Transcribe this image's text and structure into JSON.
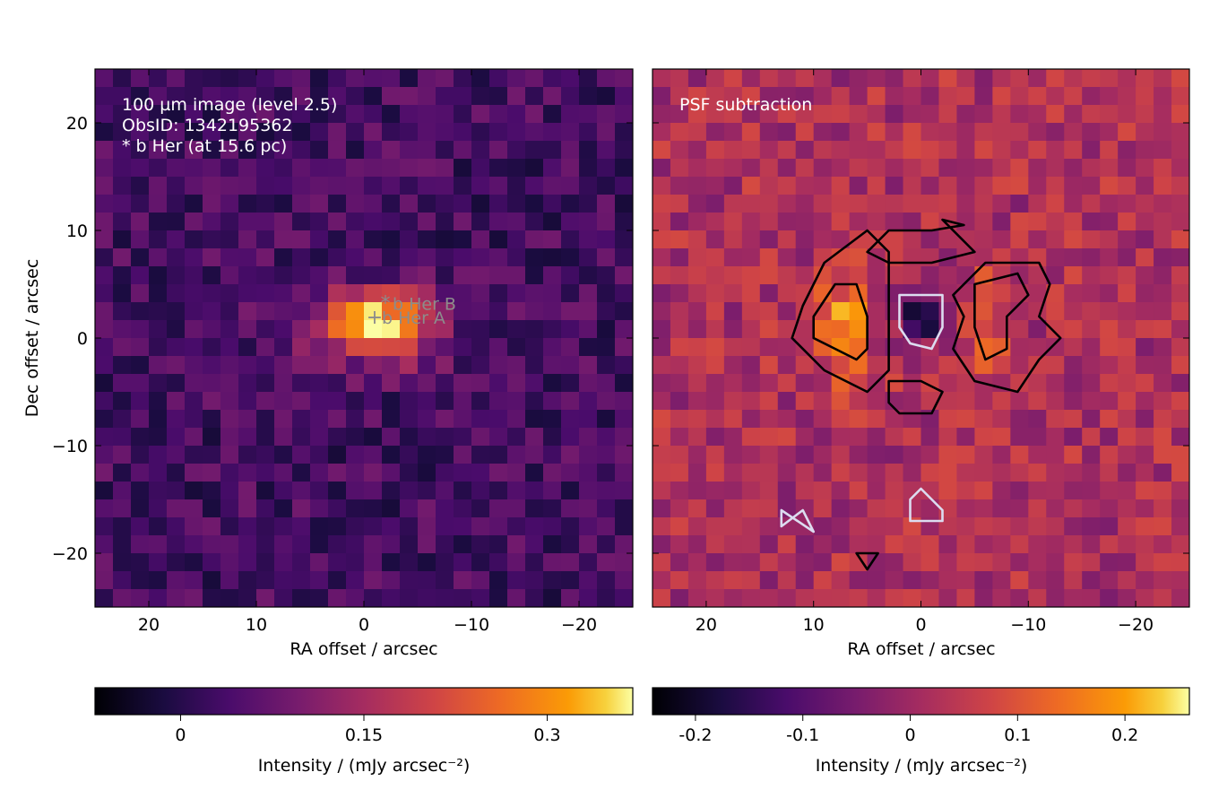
{
  "chart_data": [
    {
      "type": "heatmap",
      "panel": "left",
      "annotation_lines": [
        "100 µm image (level 2.5)",
        "ObsID: 1342195362",
        "* b Her (at 15.6 pc)"
      ],
      "xlabel": "RA offset / arcsec",
      "ylabel": "Dec offset / arcsec",
      "xlim": [
        25,
        -25
      ],
      "ylim": [
        -25,
        25
      ],
      "xticks": [
        20,
        10,
        0,
        -10,
        -20
      ],
      "xtick_labels": [
        "20",
        "10",
        "0",
        "−10",
        "−20"
      ],
      "yticks": [
        20,
        10,
        0,
        -10,
        -20
      ],
      "ytick_labels": [
        "20",
        "10",
        "0",
        "−10",
        "−20"
      ],
      "colormap": "inferno",
      "grid": false,
      "markers": [
        {
          "label": "b Her A",
          "symbol": "+",
          "x": -1.0,
          "y": 2.0
        },
        {
          "label": "b Her B",
          "symbol": "*",
          "x": -2.0,
          "y": 3.3
        }
      ],
      "colorbar": {
        "label": "Intensity / (mJy arcsec⁻²)",
        "vmin": -0.07,
        "vmax": 0.37,
        "ticks": [
          0,
          0.15,
          0.3
        ],
        "tick_labels": [
          "0",
          "0.15",
          "0.3"
        ]
      },
      "features": [
        {
          "description_value": "bright source peak",
          "x": -1.5,
          "y": 0.5,
          "value": 0.36
        },
        {
          "description_value": "extended emission",
          "x": 0,
          "y": 2,
          "value": 0.25
        }
      ]
    },
    {
      "type": "heatmap",
      "panel": "right",
      "annotation_lines": [
        "PSF subtraction"
      ],
      "xlabel": "RA offset / arcsec",
      "ylabel": "",
      "xlim": [
        25,
        -25
      ],
      "ylim": [
        -25,
        25
      ],
      "xticks": [
        20,
        10,
        0,
        -10,
        -20
      ],
      "xtick_labels": [
        "20",
        "10",
        "0",
        "−10",
        "−20"
      ],
      "colormap": "inferno",
      "grid": false,
      "contours": [
        {
          "color": "#000000",
          "level": "positive"
        },
        {
          "color": "#dcdcf0",
          "level": "negative"
        }
      ],
      "colorbar": {
        "label": "Intensity / (mJy arcsec⁻²)",
        "vmin": -0.24,
        "vmax": 0.26,
        "ticks": [
          -0.2,
          -0.1,
          0,
          0.1,
          0.2
        ],
        "tick_labels": [
          "-0.2",
          "-0.1",
          "0",
          "0.1",
          "0.2"
        ]
      },
      "features": [
        {
          "description_value": "ring lobe east",
          "x": 7,
          "y": 1,
          "value": 0.22
        },
        {
          "description_value": "ring lobe west",
          "x": -6,
          "y": 1,
          "value": 0.15
        },
        {
          "description_value": "central residual",
          "x": 0,
          "y": 2,
          "value": -0.22
        }
      ]
    }
  ]
}
